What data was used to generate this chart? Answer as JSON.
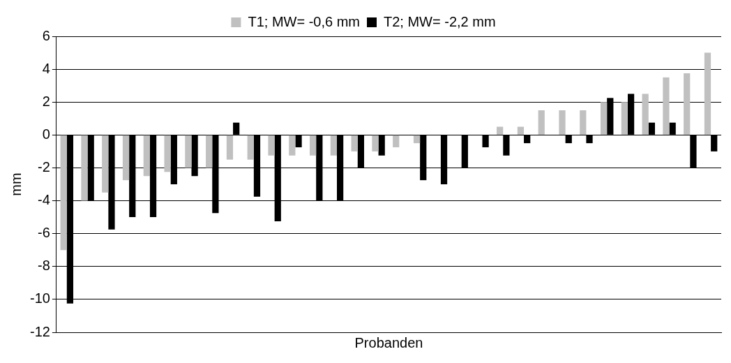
{
  "chart_data": {
    "type": "bar",
    "xlabel": "Probanden",
    "ylabel": "mm",
    "categories": [
      null,
      null,
      null,
      null,
      null,
      null,
      null,
      null,
      null,
      null,
      null,
      null,
      null,
      null,
      null,
      null,
      null,
      null,
      null,
      null,
      null,
      null,
      null,
      null,
      null,
      null,
      null,
      null,
      null,
      null,
      null,
      null
    ],
    "series": [
      {
        "name": "T1; MW= -0,6 mm",
        "color": "#c0c0c0",
        "values": [
          -7,
          -4,
          -3.5,
          -2.75,
          -2.5,
          -2.25,
          -2,
          -2,
          -1.5,
          -1.5,
          -1.25,
          -1.25,
          -1.25,
          -1.25,
          -1,
          -1,
          -0.75,
          -0.5,
          0,
          0,
          0,
          0.5,
          0.5,
          1.5,
          1.5,
          1.5,
          2,
          2,
          2.5,
          3.5,
          3.75,
          5
        ]
      },
      {
        "name": "T2; MW= -2,2 mm",
        "color": "#000000",
        "values": [
          -10.25,
          -4,
          -5.75,
          -5,
          -5,
          -3,
          -2.5,
          -4.75,
          0.75,
          -3.75,
          -5.25,
          -0.75,
          -4,
          -4,
          -2,
          -1.25,
          0,
          -2.75,
          -3,
          -2,
          -0.75,
          -1.25,
          -0.5,
          0,
          -0.5,
          -0.5,
          2.25,
          2.5,
          0.75,
          0.75,
          -2,
          -1
        ]
      }
    ],
    "ylim": [
      -12,
      6
    ],
    "yticks": [
      -12,
      -10,
      -8,
      -6,
      -4,
      -2,
      0,
      2,
      4,
      6
    ],
    "grid": "y",
    "legend": "top",
    "tick_labels": "y"
  }
}
